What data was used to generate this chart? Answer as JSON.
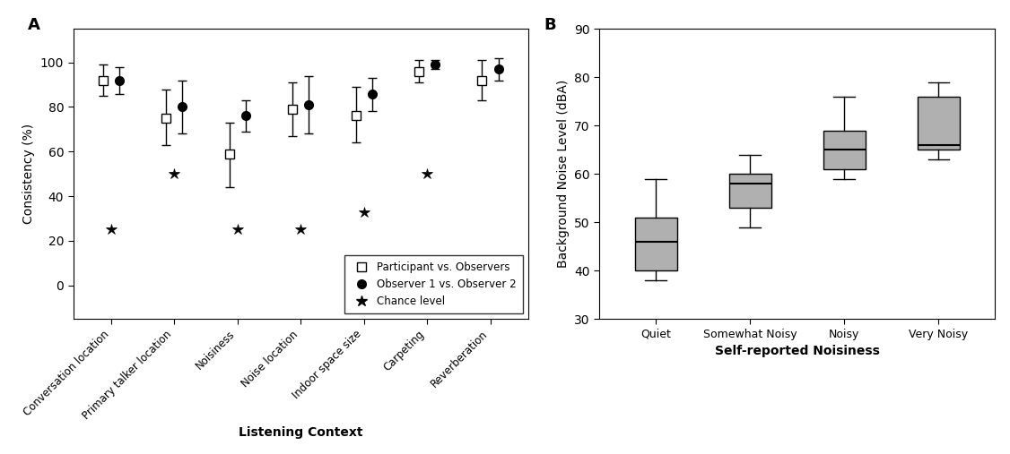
{
  "panel_A": {
    "title": "A",
    "xlabel": "Listening Context",
    "ylabel": "Consistency (%)",
    "ylim": [
      -15,
      115
    ],
    "yticks": [
      0,
      20,
      40,
      60,
      80,
      100
    ],
    "categories": [
      "Conversation location",
      "Primary talker location",
      "Noisiness",
      "Noise location",
      "Indoor space size",
      "Carpeting",
      "Reverberation"
    ],
    "participant_means": [
      92,
      75,
      59,
      79,
      76,
      96,
      92
    ],
    "participant_ci_low": [
      85,
      63,
      44,
      67,
      64,
      91,
      83
    ],
    "participant_ci_high": [
      99,
      88,
      73,
      91,
      89,
      101,
      101
    ],
    "observer_means": [
      92,
      80,
      76,
      81,
      86,
      99,
      97
    ],
    "observer_ci_low": [
      86,
      68,
      69,
      68,
      78,
      97,
      92
    ],
    "observer_ci_high": [
      98,
      92,
      83,
      94,
      93,
      101,
      102
    ],
    "chance_levels": [
      25,
      50,
      25,
      25,
      33,
      50,
      null
    ],
    "legend_labels": [
      "Participant vs. Observers",
      "Observer 1 vs. Observer 2",
      "Chance level"
    ]
  },
  "panel_B": {
    "title": "B",
    "xlabel": "Self-reported Noisiness",
    "ylabel": "Background Noise Level (dBA)",
    "ylim": [
      30,
      90
    ],
    "yticks": [
      30,
      40,
      50,
      60,
      70,
      80,
      90
    ],
    "categories": [
      "Quiet",
      "Somewhat Noisy",
      "Noisy",
      "Very Noisy"
    ],
    "box_data": {
      "Quiet": {
        "q1": 40,
        "median": 46,
        "q3": 51,
        "whislo": 38,
        "whishi": 59
      },
      "Somewhat Noisy": {
        "q1": 53,
        "median": 58,
        "q3": 60,
        "whislo": 49,
        "whishi": 64
      },
      "Noisy": {
        "q1": 61,
        "median": 65,
        "q3": 69,
        "whislo": 59,
        "whishi": 76
      },
      "Very Noisy": {
        "q1": 65,
        "median": 66,
        "q3": 76,
        "whislo": 63,
        "whishi": 79
      }
    },
    "box_color": "#b0b0b0"
  }
}
